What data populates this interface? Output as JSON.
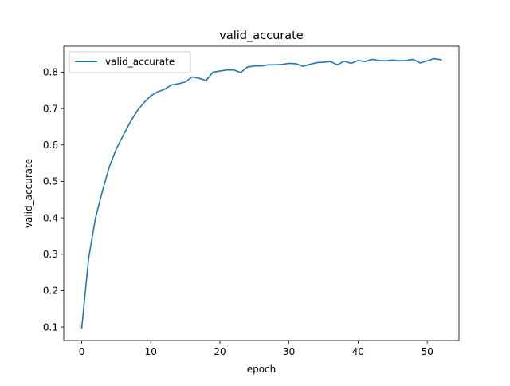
{
  "chart_data": {
    "type": "line",
    "title": "valid_accurate",
    "xlabel": "epoch",
    "ylabel": "valid_accurate",
    "xlim": [
      -2.6,
      54.6
    ],
    "ylim": [
      0.063,
      0.871
    ],
    "xticks": [
      0,
      10,
      20,
      30,
      40,
      50
    ],
    "yticks": [
      0.1,
      0.2,
      0.3,
      0.4,
      0.5,
      0.6,
      0.7,
      0.8
    ],
    "grid": false,
    "legend_position": "upper-left",
    "series": [
      {
        "name": "valid_accurate",
        "color": "#1f77b4",
        "x": [
          0,
          1,
          2,
          3,
          4,
          5,
          6,
          7,
          8,
          9,
          10,
          11,
          12,
          13,
          14,
          15,
          16,
          17,
          18,
          19,
          20,
          21,
          22,
          23,
          24,
          25,
          26,
          27,
          28,
          29,
          30,
          31,
          32,
          33,
          34,
          35,
          36,
          37,
          38,
          39,
          40,
          41,
          42,
          43,
          44,
          45,
          46,
          47,
          48,
          49,
          50,
          51,
          52
        ],
        "values": [
          0.097,
          0.289,
          0.4,
          0.474,
          0.54,
          0.589,
          0.626,
          0.662,
          0.693,
          0.716,
          0.735,
          0.746,
          0.753,
          0.765,
          0.768,
          0.773,
          0.787,
          0.783,
          0.777,
          0.8,
          0.803,
          0.806,
          0.806,
          0.799,
          0.814,
          0.817,
          0.817,
          0.82,
          0.82,
          0.821,
          0.824,
          0.823,
          0.816,
          0.821,
          0.826,
          0.827,
          0.829,
          0.82,
          0.83,
          0.824,
          0.832,
          0.829,
          0.835,
          0.832,
          0.831,
          0.833,
          0.831,
          0.832,
          0.835,
          0.825,
          0.831,
          0.837,
          0.834
        ]
      }
    ]
  }
}
